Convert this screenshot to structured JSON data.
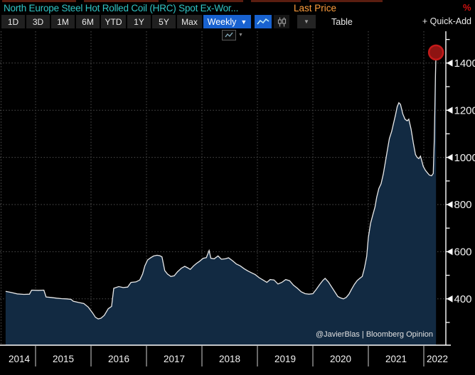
{
  "header": {
    "title": "North Europe Steel Hot Rolled Coil (HRC) Spot Ex-Wor...",
    "last_price_label": "Last Price",
    "percent_symbol": "%",
    "title_color": "#31c6c6",
    "last_price_color": "#ff9e3d",
    "percent_color": "#d31111"
  },
  "toolbar": {
    "range_buttons": [
      "1D",
      "3D",
      "1M",
      "6M",
      "YTD",
      "1Y",
      "5Y",
      "Max"
    ],
    "frequency": {
      "label": "Weekly",
      "arrow": "▼"
    },
    "chart_type_dropdown_arrow": "▼",
    "table_label": "Table",
    "quick_add_label": "+ Quick-Add",
    "selected_color": "#1862d0",
    "button_bg_color": "#202020"
  },
  "chart_data": {
    "type": "area",
    "title": "North Europe Steel Hot Rolled Coil (HRC) Spot Ex-Works, Last Price, Weekly",
    "xlabel": "",
    "ylabel": "",
    "x_tick_labels": [
      "2014",
      "2015",
      "2016",
      "2017",
      "2018",
      "2019",
      "2020",
      "2021",
      "2022"
    ],
    "x_range": [
      2014.46,
      2022.23
    ],
    "y_tick_labels": [
      400,
      600,
      800,
      1000,
      1200,
      1400
    ],
    "ylim": [
      205,
      1500
    ],
    "grid": "dotted",
    "legend": "none",
    "annotation": "@JavierBlas | Bloomberg Opinion",
    "last_point": {
      "x": 2022.22,
      "y": 1445,
      "marker": "red-circle"
    },
    "area_fill_color": "#122a42",
    "line_color": "#e9e9e9",
    "grid_color": "#4f4f4f",
    "axis_color": "#ffffff",
    "marker_fill_color": "#8e1412",
    "marker_stroke_color": "#c51a1a",
    "series": [
      {
        "name": "Last Price",
        "points": [
          [
            2014.46,
            432
          ],
          [
            2014.56,
            427
          ],
          [
            2014.67,
            421
          ],
          [
            2014.79,
            419
          ],
          [
            2014.89,
            420
          ],
          [
            2014.93,
            437
          ],
          [
            2015.05,
            436
          ],
          [
            2015.15,
            437
          ],
          [
            2015.19,
            408
          ],
          [
            2015.28,
            406
          ],
          [
            2015.38,
            403
          ],
          [
            2015.47,
            401
          ],
          [
            2015.56,
            400
          ],
          [
            2015.64,
            398
          ],
          [
            2015.68,
            390
          ],
          [
            2015.77,
            385
          ],
          [
            2015.87,
            380
          ],
          [
            2015.95,
            365
          ],
          [
            2016.03,
            340
          ],
          [
            2016.08,
            322
          ],
          [
            2016.13,
            315
          ],
          [
            2016.18,
            318
          ],
          [
            2016.24,
            330
          ],
          [
            2016.31,
            358
          ],
          [
            2016.37,
            368
          ],
          [
            2016.41,
            445
          ],
          [
            2016.5,
            452
          ],
          [
            2016.58,
            448
          ],
          [
            2016.66,
            450
          ],
          [
            2016.72,
            470
          ],
          [
            2016.81,
            472
          ],
          [
            2016.88,
            480
          ],
          [
            2016.93,
            505
          ],
          [
            2016.97,
            540
          ],
          [
            2017.02,
            565
          ],
          [
            2017.08,
            575
          ],
          [
            2017.13,
            582
          ],
          [
            2017.19,
            585
          ],
          [
            2017.24,
            583
          ],
          [
            2017.28,
            578
          ],
          [
            2017.33,
            520
          ],
          [
            2017.38,
            505
          ],
          [
            2017.44,
            495
          ],
          [
            2017.5,
            498
          ],
          [
            2017.56,
            515
          ],
          [
            2017.63,
            530
          ],
          [
            2017.69,
            538
          ],
          [
            2017.74,
            532
          ],
          [
            2017.79,
            525
          ],
          [
            2017.85,
            540
          ],
          [
            2017.9,
            550
          ],
          [
            2017.96,
            560
          ],
          [
            2018.02,
            572
          ],
          [
            2018.08,
            575
          ],
          [
            2018.13,
            605
          ],
          [
            2018.16,
            572
          ],
          [
            2018.22,
            570
          ],
          [
            2018.29,
            582
          ],
          [
            2018.35,
            568
          ],
          [
            2018.42,
            570
          ],
          [
            2018.48,
            574
          ],
          [
            2018.55,
            562
          ],
          [
            2018.62,
            548
          ],
          [
            2018.69,
            540
          ],
          [
            2018.76,
            528
          ],
          [
            2018.83,
            518
          ],
          [
            2018.9,
            510
          ],
          [
            2018.96,
            503
          ],
          [
            2019.03,
            490
          ],
          [
            2019.1,
            480
          ],
          [
            2019.17,
            470
          ],
          [
            2019.23,
            482
          ],
          [
            2019.3,
            480
          ],
          [
            2019.37,
            463
          ],
          [
            2019.44,
            470
          ],
          [
            2019.51,
            482
          ],
          [
            2019.58,
            477
          ],
          [
            2019.65,
            458
          ],
          [
            2019.72,
            445
          ],
          [
            2019.79,
            430
          ],
          [
            2019.86,
            422
          ],
          [
            2019.93,
            420
          ],
          [
            2020.0,
            422
          ],
          [
            2020.06,
            440
          ],
          [
            2020.12,
            460
          ],
          [
            2020.18,
            478
          ],
          [
            2020.22,
            487
          ],
          [
            2020.28,
            472
          ],
          [
            2020.34,
            450
          ],
          [
            2020.4,
            428
          ],
          [
            2020.45,
            410
          ],
          [
            2020.5,
            404
          ],
          [
            2020.55,
            400
          ],
          [
            2020.6,
            406
          ],
          [
            2020.65,
            420
          ],
          [
            2020.7,
            442
          ],
          [
            2020.75,
            462
          ],
          [
            2020.8,
            478
          ],
          [
            2020.85,
            488
          ],
          [
            2020.89,
            495
          ],
          [
            2020.93,
            530
          ],
          [
            2020.97,
            580
          ],
          [
            2021.0,
            660
          ],
          [
            2021.04,
            720
          ],
          [
            2021.08,
            755
          ],
          [
            2021.12,
            790
          ],
          [
            2021.15,
            830
          ],
          [
            2021.19,
            868
          ],
          [
            2021.23,
            888
          ],
          [
            2021.27,
            930
          ],
          [
            2021.31,
            985
          ],
          [
            2021.35,
            1040
          ],
          [
            2021.38,
            1080
          ],
          [
            2021.42,
            1110
          ],
          [
            2021.45,
            1140
          ],
          [
            2021.49,
            1180
          ],
          [
            2021.52,
            1215
          ],
          [
            2021.55,
            1232
          ],
          [
            2021.58,
            1225
          ],
          [
            2021.62,
            1185
          ],
          [
            2021.66,
            1162
          ],
          [
            2021.7,
            1155
          ],
          [
            2021.73,
            1162
          ],
          [
            2021.77,
            1120
          ],
          [
            2021.81,
            1062
          ],
          [
            2021.85,
            1012
          ],
          [
            2021.88,
            1000
          ],
          [
            2021.91,
            995
          ],
          [
            2021.94,
            1005
          ],
          [
            2021.96,
            988
          ],
          [
            2021.99,
            962
          ],
          [
            2022.03,
            945
          ],
          [
            2022.07,
            933
          ],
          [
            2022.1,
            925
          ],
          [
            2022.14,
            922
          ],
          [
            2022.17,
            932
          ],
          [
            2022.19,
            1080
          ],
          [
            2022.21,
            1350
          ],
          [
            2022.22,
            1445
          ]
        ]
      }
    ]
  }
}
